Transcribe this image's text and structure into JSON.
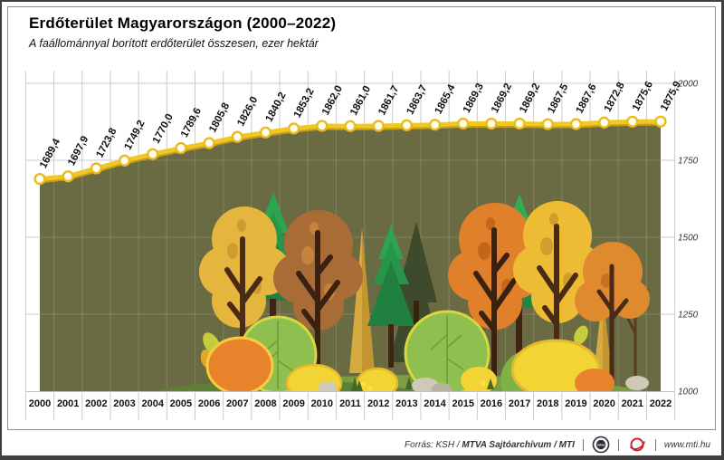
{
  "title": "Erdőterület Magyarországon (2000–2022)",
  "subtitle": "A faállománnyal borított erdőterület összesen, ezer hektár",
  "chart_data": {
    "type": "area",
    "title": "Erdőterület Magyarországon (2000–2022)",
    "subtitle": "A faállománnyal borított erdőterület összesen, ezer hektár",
    "unit": "ezer hektár",
    "categories": [
      "2000",
      "2001",
      "2002",
      "2003",
      "2004",
      "2005",
      "2006",
      "2007",
      "2008",
      "2009",
      "2010",
      "2011",
      "2012",
      "2013",
      "2014",
      "2015",
      "2016",
      "2017",
      "2018",
      "2019",
      "2020",
      "2021",
      "2022"
    ],
    "values": [
      1689.4,
      1697.9,
      1723.8,
      1749.2,
      1770.0,
      1789.6,
      1805.8,
      1826.0,
      1840.2,
      1853.2,
      1862.0,
      1861.0,
      1861.7,
      1863.7,
      1865.4,
      1869.3,
      1869.2,
      1869.2,
      1867.5,
      1867.6,
      1872.8,
      1875.6,
      1875.9
    ],
    "value_labels": [
      "1689,4",
      "1697,9",
      "1723,8",
      "1749,2",
      "1770,0",
      "1789,6",
      "1805,8",
      "1826,0",
      "1840,2",
      "1853,2",
      "1862,0",
      "1861,0",
      "1861,7",
      "1863,7",
      "1865,4",
      "1869,3",
      "1869,2",
      "1869,2",
      "1867,5",
      "1867,6",
      "1872,8",
      "1875,6",
      "1875,9"
    ],
    "ylim": [
      1000,
      2000
    ],
    "yticks": [
      2000,
      1750,
      1500,
      1250,
      1000
    ],
    "grid": "on",
    "legend": "none",
    "colors": {
      "line": "#F0C826",
      "line_shadow": "#C59F17",
      "marker_fill": "#FFFDF0",
      "marker_stroke": "#E9BC1C",
      "area_fill": "#6A6A43",
      "grid": "#CBCBCB",
      "grid_overlay": "rgba(255,255,255,0.14)",
      "axis": "#C2C2C2"
    }
  },
  "footer": {
    "source_prefix": "Forrás: KSH / ",
    "source_bold": "MTVA Sajtóarchívum / MTI",
    "url": "www.mti.hu",
    "logos": [
      "mtva-logo",
      "mti-logo"
    ]
  }
}
